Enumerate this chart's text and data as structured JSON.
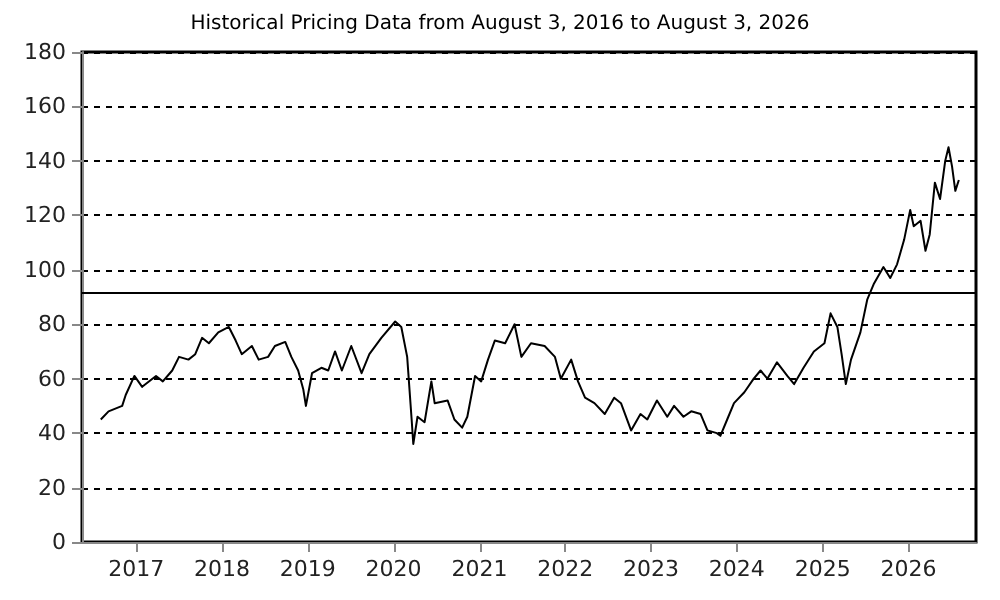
{
  "chart_data": {
    "type": "line",
    "title": "Historical Pricing Data from August 3, 2016 to August 3, 2026",
    "x": [
      "2016-08-03",
      "2016-09-05",
      "2016-11-02",
      "2016-11-17",
      "2016-12-24",
      "2017-01-26",
      "2017-03-26",
      "2017-04-24",
      "2017-06-03",
      "2017-07-02",
      "2017-08-11",
      "2017-09-09",
      "2017-10-08",
      "2017-11-06",
      "2017-12-16",
      "2018-01-30",
      "2018-02-28",
      "2018-03-26",
      "2018-05-08",
      "2018-06-06",
      "2018-07-16",
      "2018-08-14",
      "2018-09-27",
      "2018-10-23",
      "2018-11-21",
      "2018-12-13",
      "2018-12-24",
      "2019-01-19",
      "2019-02-28",
      "2019-03-29",
      "2019-04-27",
      "2019-05-26",
      "2019-07-05",
      "2019-08-18",
      "2019-09-20",
      "2019-11-10",
      "2020-01-08",
      "2020-02-03",
      "2020-02-28",
      "2020-03-18",
      "2020-03-25",
      "2020-04-12",
      "2020-05-12",
      "2020-06-10",
      "2020-06-24",
      "2020-08-18",
      "2020-09-16",
      "2020-10-19",
      "2020-11-10",
      "2020-12-13",
      "2021-01-08",
      "2021-02-06",
      "2021-03-07",
      "2021-04-20",
      "2021-05-30",
      "2021-06-28",
      "2021-08-08",
      "2021-10-05",
      "2021-11-18",
      "2021-12-13",
      "2022-01-26",
      "2022-02-24",
      "2022-03-26",
      "2022-05-05",
      "2022-06-18",
      "2022-07-28",
      "2022-08-26",
      "2022-10-08",
      "2022-11-17",
      "2022-12-16",
      "2023-01-26",
      "2023-03-11",
      "2023-04-09",
      "2023-05-19",
      "2023-06-21",
      "2023-07-31",
      "2023-08-29",
      "2023-10-08",
      "2023-10-23",
      "2023-11-21",
      "2023-12-20",
      "2024-02-02",
      "2024-03-13",
      "2024-04-11",
      "2024-05-10",
      "2024-06-20",
      "2024-08-03",
      "2024-09-01",
      "2024-10-11",
      "2024-11-24",
      "2025-01-08",
      "2025-02-03",
      "2025-03-04",
      "2025-03-22",
      "2025-04-09",
      "2025-05-01",
      "2025-06-10",
      "2025-07-09",
      "2025-08-07",
      "2025-09-16",
      "2025-10-15",
      "2025-11-13",
      "2025-12-13",
      "2026-01-08",
      "2026-01-23",
      "2026-02-21",
      "2026-03-14",
      "2026-04-01",
      "2026-04-23",
      "2026-05-15",
      "2026-06-06",
      "2026-06-20",
      "2026-07-05",
      "2026-07-19",
      "2026-08-03"
    ],
    "series": [
      {
        "color": "#000000",
        "values": [
          45,
          48,
          50,
          54,
          61,
          57,
          61,
          59,
          63,
          68,
          67,
          69,
          75,
          73,
          77,
          79,
          74,
          69,
          72,
          67,
          68,
          72,
          73.5,
          68,
          63,
          56,
          50,
          62,
          64,
          63,
          70,
          63,
          72,
          62,
          69,
          75,
          81,
          79,
          68,
          45,
          36,
          46,
          44,
          59,
          51,
          52,
          45,
          42,
          46,
          61,
          59,
          67,
          74,
          73,
          80,
          68,
          73,
          72,
          68,
          60,
          67,
          59,
          53,
          51,
          47,
          53,
          51,
          41,
          47,
          45,
          52,
          46,
          50,
          46,
          48,
          47,
          41,
          40,
          39,
          45,
          51,
          55,
          60,
          63,
          60,
          66,
          61,
          58,
          64,
          70,
          73,
          84,
          79,
          69,
          58,
          67,
          77,
          89,
          95,
          101,
          97,
          102,
          111,
          122,
          116,
          118,
          107,
          113,
          132,
          126,
          140,
          145,
          138,
          129,
          133
        ]
      }
    ],
    "xlim": [
      "2016-05-15",
      "2026-10-15"
    ],
    "xticks": [
      "2017",
      "2018",
      "2019",
      "2020",
      "2021",
      "2022",
      "2023",
      "2024",
      "2025",
      "2026"
    ],
    "ylim": [
      0,
      180
    ],
    "yticks": [
      0,
      20,
      40,
      60,
      80,
      100,
      120,
      140,
      160,
      180
    ],
    "ref_lines": [
      {
        "axis": "y",
        "value": 92,
        "color": "#000000",
        "line_style": "solid"
      }
    ],
    "grid": "y",
    "marker": "none",
    "line_style": "solid"
  }
}
